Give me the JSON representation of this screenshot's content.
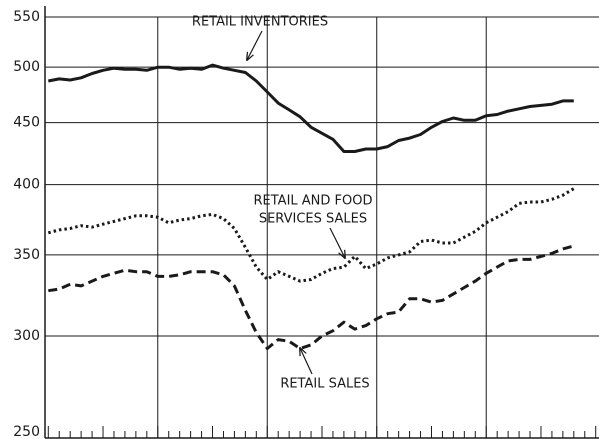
{
  "chart_data": {
    "type": "line",
    "log_y": true,
    "grid": true,
    "color": "#1a1a1a",
    "x": [
      0,
      1,
      2,
      3,
      4,
      5,
      6,
      7,
      8,
      9,
      10,
      11,
      12,
      13,
      14,
      15,
      16,
      17,
      18,
      19,
      20,
      21,
      22,
      23,
      24,
      25,
      26,
      27,
      28,
      29,
      30,
      31,
      32,
      33,
      34,
      35,
      36,
      37,
      38,
      39,
      40,
      41,
      42,
      43,
      44,
      45,
      46,
      47,
      48
    ],
    "xlim": [
      -0.3,
      50.3
    ],
    "xticks": [
      10,
      20,
      30,
      40
    ],
    "minor_xticks": [
      0,
      1,
      2,
      3,
      4,
      5,
      6,
      7,
      8,
      9,
      10,
      11,
      12,
      13,
      14,
      15,
      16,
      17,
      18,
      19,
      20,
      21,
      22,
      23,
      24,
      25,
      26,
      27,
      28,
      29,
      30,
      31,
      32,
      33,
      34,
      35,
      36,
      37,
      38,
      39,
      40,
      41,
      42,
      43,
      44,
      45,
      46,
      47,
      48,
      49,
      50
    ],
    "ylim": [
      250,
      550
    ],
    "yticks": [
      250,
      300,
      350,
      400,
      450,
      500,
      550
    ],
    "series": [
      {
        "color": "#1a1a1a",
        "dash": "solid",
        "values": [
          487,
          489,
          488,
          490,
          494,
          497,
          499,
          498,
          498,
          497,
          500,
          500,
          498,
          499,
          498,
          502,
          499,
          497,
          495,
          487,
          477,
          467,
          461,
          455,
          446,
          441,
          436,
          426,
          426,
          428,
          428,
          430,
          435,
          437,
          440,
          446,
          451,
          454,
          452,
          452,
          456,
          457,
          460,
          462,
          464,
          465,
          466,
          469,
          469
        ]
      },
      {
        "color": "#1a1a1a",
        "dash": "dotted",
        "values": [
          365,
          367,
          368,
          370,
          369,
          371,
          373,
          375,
          377,
          377,
          376,
          372,
          374,
          375,
          377,
          378,
          375,
          368,
          355,
          342,
          334,
          339,
          336,
          333,
          334,
          338,
          341,
          342,
          349,
          341,
          344,
          348,
          350,
          352,
          359,
          360,
          358,
          358,
          362,
          366,
          372,
          376,
          380,
          386,
          387,
          387,
          389,
          392,
          397
        ]
      },
      {
        "color": "#1a1a1a",
        "dash": "dashed",
        "values": [
          327,
          328,
          331,
          330,
          333,
          336,
          338,
          340,
          339,
          339,
          336,
          336,
          337,
          339,
          339,
          339,
          337,
          330,
          315,
          302,
          293,
          298,
          297,
          293,
          295,
          300,
          303,
          308,
          304,
          306,
          310,
          313,
          314,
          322,
          322,
          320,
          321,
          325,
          329,
          333,
          338,
          342,
          346,
          347,
          347,
          349,
          351,
          354,
          356
        ]
      }
    ],
    "annotations": [
      {
        "lines": [
          "RETAIL INVENTORIES"
        ]
      },
      {
        "lines": [
          "RETAIL AND FOOD",
          "SERVICES SALES"
        ]
      },
      {
        "lines": [
          "RETAIL SALES"
        ]
      }
    ]
  }
}
